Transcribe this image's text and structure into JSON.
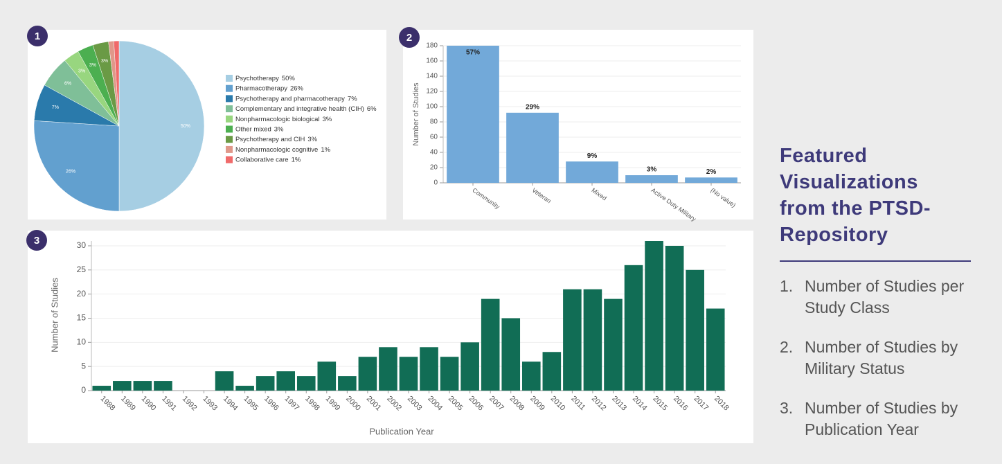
{
  "chart_data": [
    {
      "type": "pie",
      "badge": "1",
      "categories": [
        "Psychotherapy",
        "Pharmacotherapy",
        "Psychotherapy and pharmacotherapy",
        "Complementary and integrative health (CIH)",
        "Nonpharmacologic biological",
        "Other mixed",
        "Psychotherapy and CIH",
        "Nonpharmacologic cognitive",
        "Collaborative care"
      ],
      "values": [
        50,
        26,
        7,
        6,
        3,
        3,
        3,
        1,
        1
      ],
      "value_labels": [
        "50%",
        "26%",
        "7%",
        "6%",
        "3%",
        "3%",
        "3%",
        "1%",
        "1%"
      ],
      "colors": [
        "#a6cee3",
        "#62a0cf",
        "#2a7aab",
        "#7fbf98",
        "#98d67f",
        "#4caf50",
        "#6a9a45",
        "#e0988a",
        "#f06a6a"
      ],
      "legend": "right"
    },
    {
      "type": "bar",
      "badge": "2",
      "y_label": "Number of Studies",
      "categories": [
        "Community",
        "Veteran",
        "Mixed",
        "Active Duty Military",
        "(No value)"
      ],
      "values": [
        180,
        92,
        28,
        10,
        7
      ],
      "data_labels": [
        "57%",
        "29%",
        "9%",
        "3%",
        "2%"
      ],
      "color": "#72a9d9",
      "ylim": [
        0,
        180
      ],
      "yticks": [
        0,
        20,
        40,
        60,
        80,
        100,
        120,
        140,
        160,
        180
      ],
      "grid": true
    },
    {
      "type": "bar",
      "badge": "3",
      "x_label": "Publication Year",
      "y_label": "Number of Studies",
      "categories": [
        "1988",
        "1989",
        "1990",
        "1991",
        "1992",
        "1993",
        "1994",
        "1995",
        "1996",
        "1997",
        "1998",
        "1999",
        "2000",
        "2001",
        "2002",
        "2003",
        "2004",
        "2005",
        "2006",
        "2007",
        "2008",
        "2009",
        "2010",
        "2011",
        "2012",
        "2013",
        "2014",
        "2015",
        "2016",
        "2017",
        "2018"
      ],
      "values": [
        1,
        2,
        2,
        2,
        0,
        0,
        4,
        1,
        3,
        4,
        3,
        6,
        3,
        7,
        9,
        7,
        9,
        7,
        10,
        19,
        15,
        6,
        8,
        21,
        21,
        19,
        26,
        31,
        30,
        25,
        17
      ],
      "color": "#116d55",
      "ylim": [
        0,
        31
      ],
      "yticks": [
        0,
        5,
        10,
        15,
        20,
        25,
        30
      ],
      "grid": true
    }
  ],
  "sidebar": {
    "title": "Featured Visualizations from the PTSD-Repository",
    "items": [
      {
        "number": "1.",
        "text": "Number of Studies per Study Class"
      },
      {
        "number": "2.",
        "text": "Number of Studies by Military Status"
      },
      {
        "number": "3.",
        "text": "Number of Studies by Publication Year"
      }
    ]
  }
}
